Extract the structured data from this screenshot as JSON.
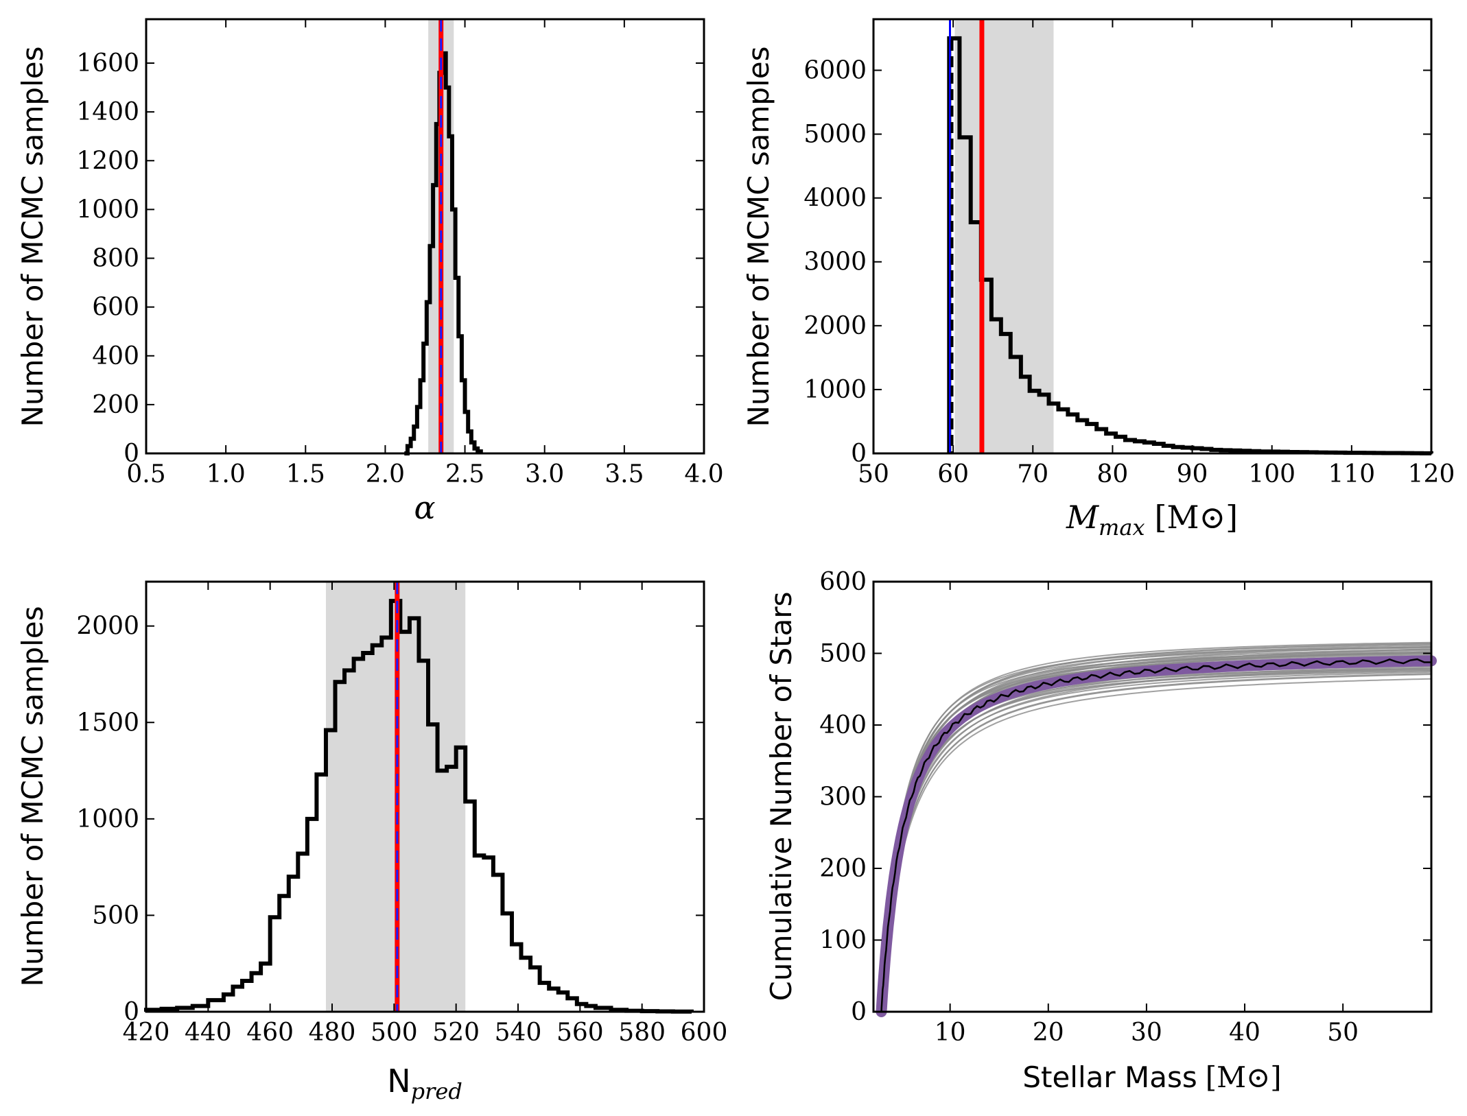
{
  "figure": {
    "background": "#ffffff"
  },
  "chart_data": [
    {
      "id": "alpha",
      "type": "histogram",
      "ylabel": "Number of MCMC samples",
      "xlabel": "α",
      "xlim": [
        0.5,
        4.0
      ],
      "ylim": [
        0,
        1780
      ],
      "xticks": [
        "0.5",
        "1.0",
        "1.5",
        "2.0",
        "2.5",
        "3.0",
        "3.5",
        "4.0"
      ],
      "yticks": [
        "0",
        "200",
        "400",
        "600",
        "800",
        "1000",
        "1200",
        "1400",
        "1600"
      ],
      "band": [
        2.27,
        2.43
      ],
      "true_value": 2.35,
      "fit_value": 2.35,
      "steps": [
        [
          2.12,
          0
        ],
        [
          2.14,
          30
        ],
        [
          2.16,
          60
        ],
        [
          2.18,
          110
        ],
        [
          2.2,
          190
        ],
        [
          2.22,
          300
        ],
        [
          2.24,
          450
        ],
        [
          2.26,
          620
        ],
        [
          2.28,
          850
        ],
        [
          2.3,
          1100
        ],
        [
          2.32,
          1350
        ],
        [
          2.34,
          1560
        ],
        [
          2.36,
          1640
        ],
        [
          2.38,
          1500
        ],
        [
          2.4,
          1300
        ],
        [
          2.42,
          1000
        ],
        [
          2.44,
          720
        ],
        [
          2.46,
          480
        ],
        [
          2.48,
          300
        ],
        [
          2.5,
          170
        ],
        [
          2.52,
          90
        ],
        [
          2.54,
          45
        ],
        [
          2.56,
          20
        ],
        [
          2.58,
          8
        ],
        [
          2.6,
          0
        ]
      ]
    },
    {
      "id": "mmax",
      "type": "histogram",
      "ylabel": "Number of MCMC samples",
      "xlabel_main": "M",
      "xlabel_sub": "max",
      "xlabel_unit": "[M⊙]",
      "xlim": [
        50,
        120
      ],
      "ylim": [
        0,
        6800
      ],
      "xticks": [
        "50",
        "60",
        "70",
        "80",
        "90",
        "100",
        "110",
        "120"
      ],
      "yticks": [
        "0",
        "1000",
        "2000",
        "3000",
        "4000",
        "5000",
        "6000"
      ],
      "band": [
        60.2,
        72.6
      ],
      "true_value": 59.6,
      "fit_value": 63.6,
      "steps": [
        [
          59.5,
          6500
        ],
        [
          60.8,
          4950
        ],
        [
          62.2,
          3620
        ],
        [
          63.5,
          2720
        ],
        [
          64.8,
          2100
        ],
        [
          66.0,
          1870
        ],
        [
          67.2,
          1510
        ],
        [
          68.5,
          1200
        ],
        [
          69.6,
          980
        ],
        [
          70.8,
          920
        ],
        [
          72.0,
          780
        ],
        [
          73.2,
          690
        ],
        [
          74.4,
          610
        ],
        [
          75.6,
          520
        ],
        [
          76.8,
          460
        ],
        [
          78.0,
          380
        ],
        [
          79.2,
          310
        ],
        [
          80.4,
          260
        ],
        [
          81.6,
          210
        ],
        [
          82.8,
          190
        ],
        [
          84.0,
          170
        ],
        [
          85.2,
          150
        ],
        [
          86.4,
          120
        ],
        [
          87.6,
          100
        ],
        [
          88.8,
          90
        ],
        [
          90.0,
          80
        ],
        [
          91.2,
          70
        ],
        [
          92.4,
          55
        ],
        [
          93.6,
          50
        ],
        [
          94.8,
          45
        ],
        [
          96.0,
          40
        ],
        [
          97.2,
          35
        ],
        [
          98.4,
          30
        ],
        [
          99.6,
          28
        ],
        [
          100.8,
          25
        ],
        [
          102.0,
          22
        ],
        [
          103.2,
          20
        ],
        [
          104.4,
          18
        ],
        [
          105.6,
          15
        ],
        [
          106.8,
          13
        ],
        [
          108.0,
          12
        ],
        [
          109.2,
          10
        ],
        [
          110.4,
          9
        ],
        [
          111.6,
          8
        ],
        [
          112.8,
          7
        ],
        [
          114.0,
          6
        ],
        [
          115.2,
          5
        ],
        [
          116.4,
          4
        ],
        [
          117.6,
          3
        ],
        [
          118.8,
          2
        ],
        [
          120.0,
          0
        ]
      ]
    },
    {
      "id": "npred",
      "type": "histogram",
      "ylabel": "Number of MCMC samples",
      "xlabel_main": "N",
      "xlabel_sub": "pred",
      "xlim": [
        420,
        600
      ],
      "ylim": [
        0,
        2230
      ],
      "xticks": [
        "420",
        "440",
        "460",
        "480",
        "500",
        "520",
        "540",
        "560",
        "580",
        "600"
      ],
      "yticks": [
        "0",
        "500",
        "1000",
        "1500",
        "2000"
      ],
      "band": [
        478,
        523
      ],
      "true_value": 501,
      "fit_value": 501,
      "steps": [
        [
          420,
          10
        ],
        [
          425,
          15
        ],
        [
          430,
          20
        ],
        [
          435,
          30
        ],
        [
          440,
          60
        ],
        [
          445,
          90
        ],
        [
          448,
          130
        ],
        [
          451,
          160
        ],
        [
          454,
          200
        ],
        [
          457,
          250
        ],
        [
          460,
          490
        ],
        [
          463,
          600
        ],
        [
          466,
          700
        ],
        [
          469,
          820
        ],
        [
          472,
          1000
        ],
        [
          475,
          1230
        ],
        [
          478,
          1460
        ],
        [
          481,
          1710
        ],
        [
          484,
          1770
        ],
        [
          487,
          1830
        ],
        [
          490,
          1860
        ],
        [
          493,
          1900
        ],
        [
          496,
          1940
        ],
        [
          499,
          2130
        ],
        [
          502,
          1970
        ],
        [
          505,
          2040
        ],
        [
          508,
          1820
        ],
        [
          511,
          1490
        ],
        [
          514,
          1250
        ],
        [
          517,
          1270
        ],
        [
          520,
          1370
        ],
        [
          523,
          1090
        ],
        [
          526,
          810
        ],
        [
          529,
          800
        ],
        [
          532,
          710
        ],
        [
          535,
          510
        ],
        [
          538,
          350
        ],
        [
          541,
          280
        ],
        [
          544,
          230
        ],
        [
          547,
          150
        ],
        [
          550,
          120
        ],
        [
          553,
          100
        ],
        [
          556,
          70
        ],
        [
          559,
          40
        ],
        [
          562,
          30
        ],
        [
          565,
          20
        ],
        [
          570,
          10
        ],
        [
          575,
          5
        ],
        [
          580,
          3
        ],
        [
          585,
          2
        ],
        [
          590,
          1
        ],
        [
          596,
          0
        ]
      ]
    },
    {
      "id": "cumulative",
      "type": "line",
      "ylabel": "Cumulative Number of Stars",
      "xlabel_main": "Stellar Mass",
      "xlabel_unit": "[M⊙]",
      "xlim": [
        2.2,
        59
      ],
      "ylim": [
        0,
        600
      ],
      "xticks": [
        "10",
        "20",
        "30",
        "40",
        "50"
      ],
      "yticks": [
        "0",
        "100",
        "200",
        "300",
        "400",
        "500",
        "600"
      ],
      "colors": {
        "envelope": "#8a8a8a",
        "band": "#7f5aa0",
        "median": "#000000"
      }
    }
  ]
}
